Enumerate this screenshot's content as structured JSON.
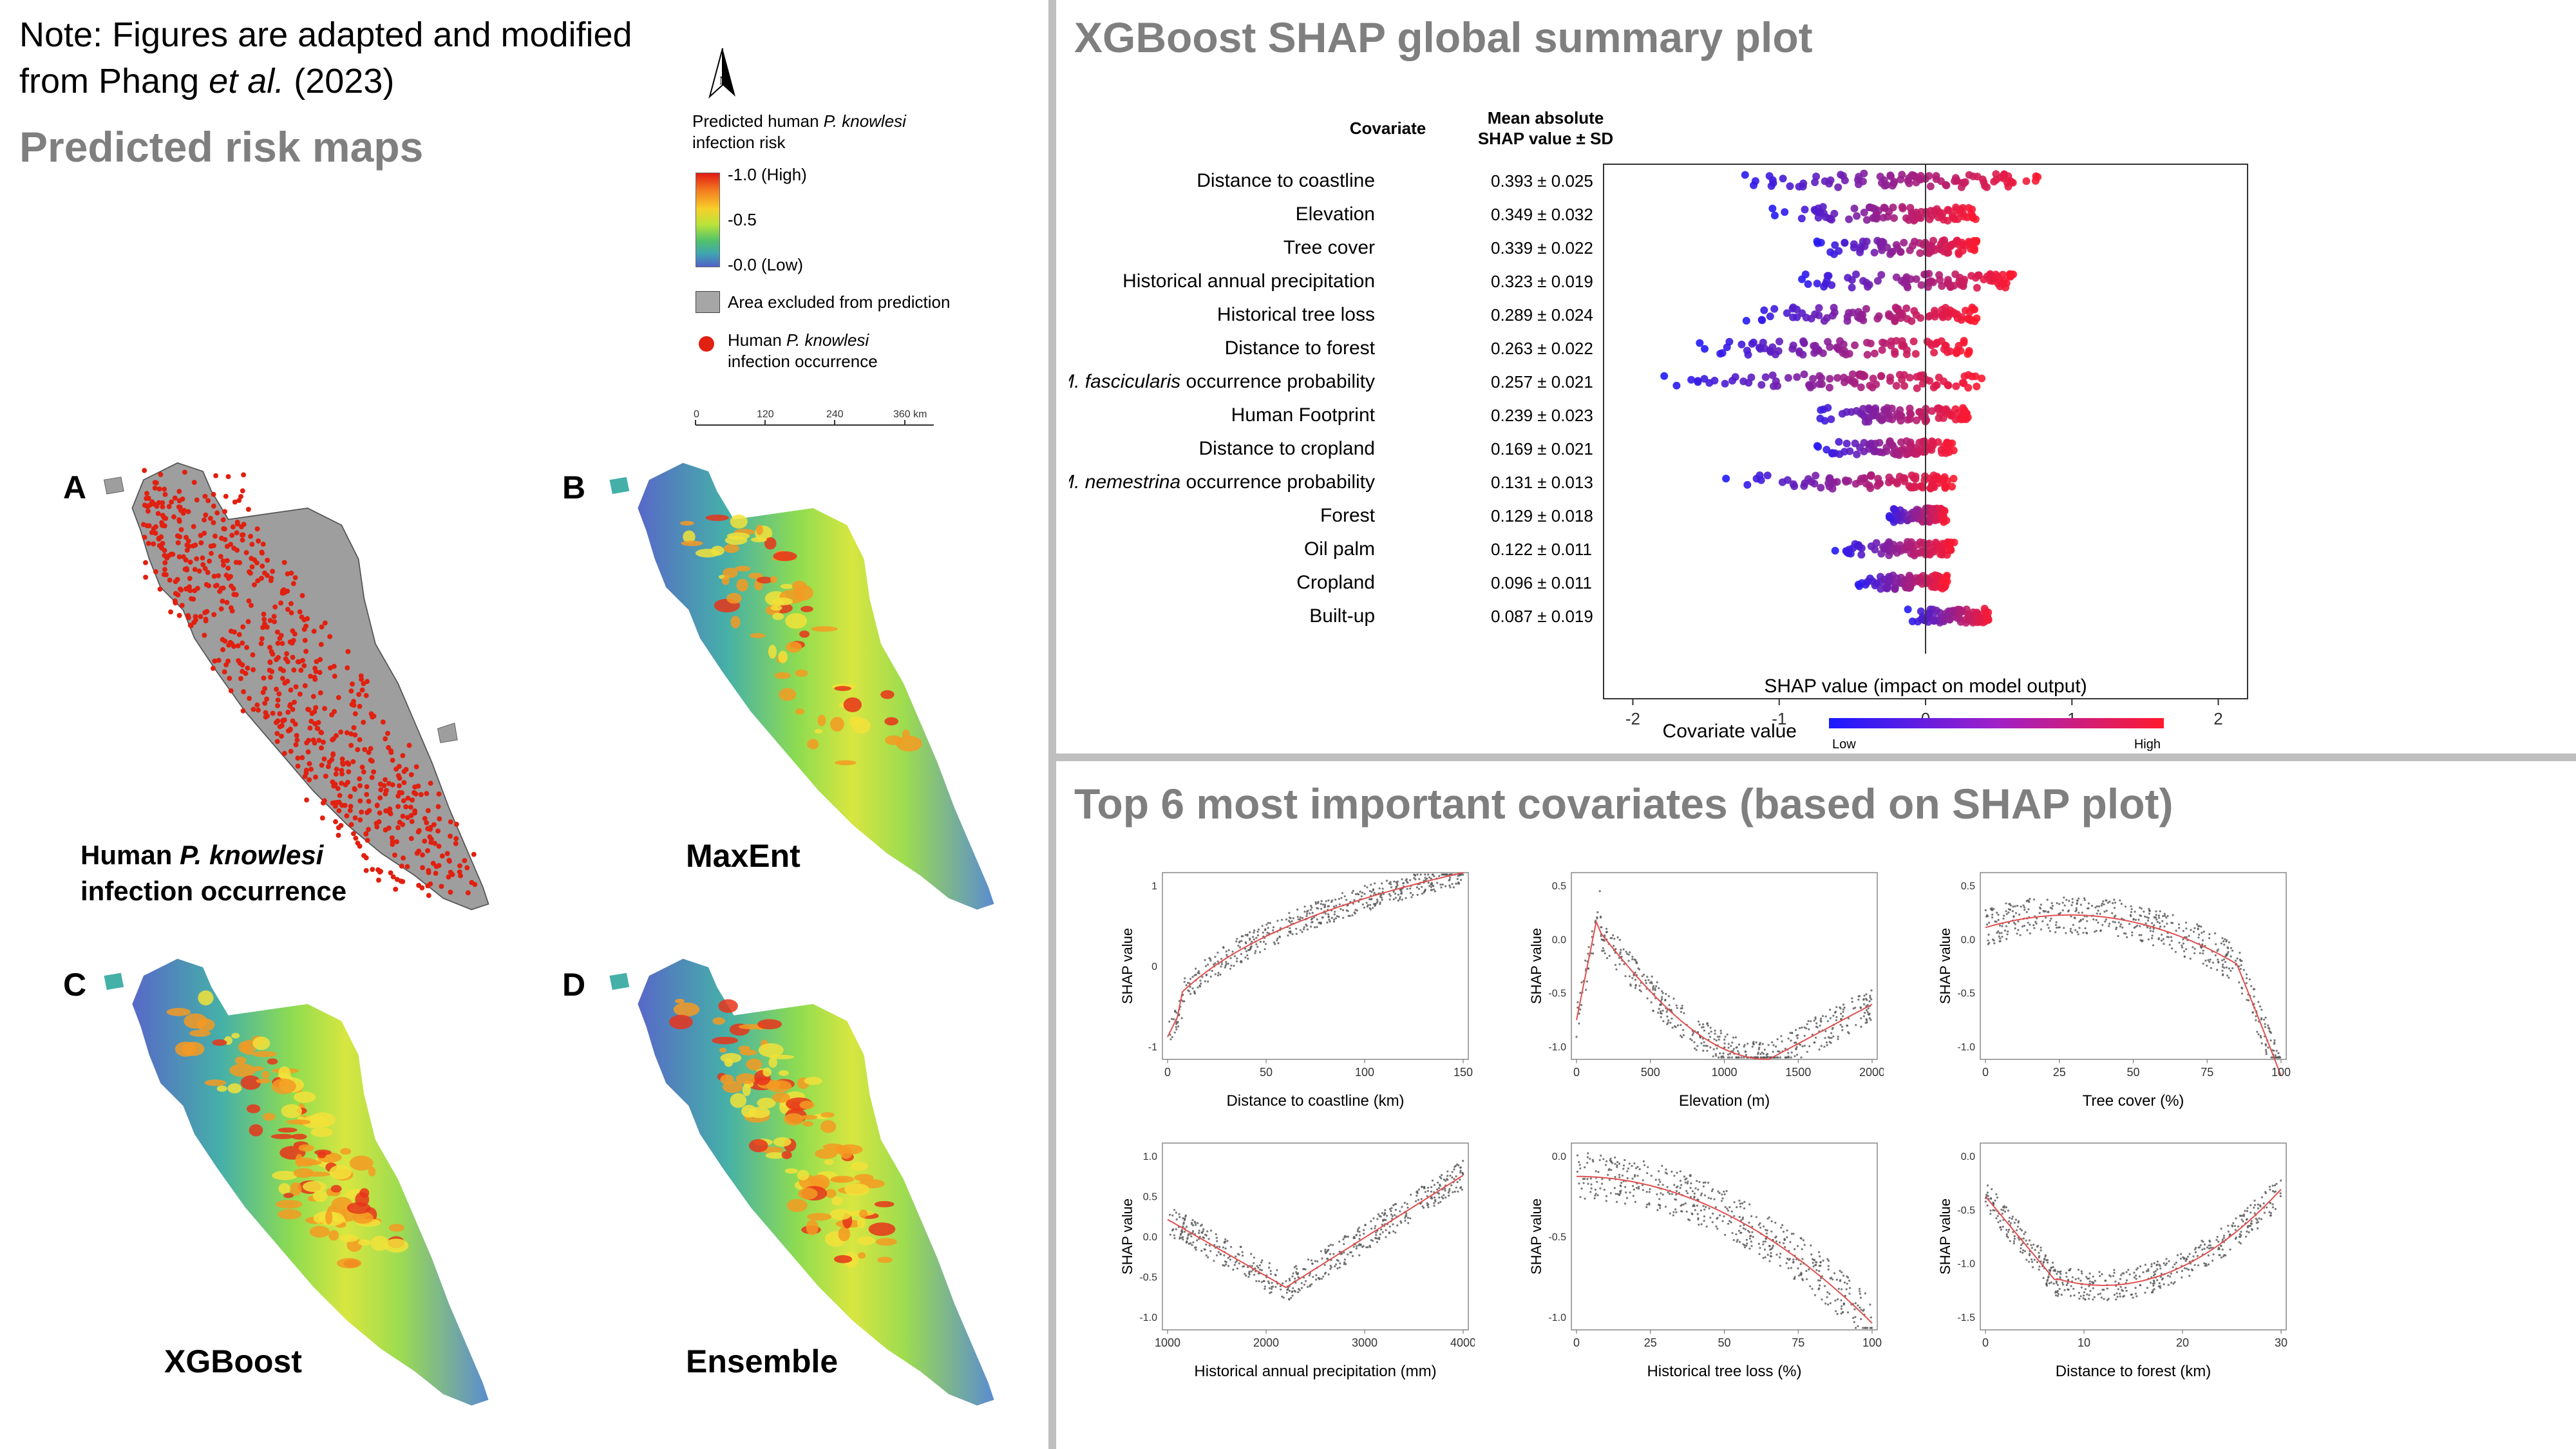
{
  "note": {
    "line1": "Note: Figures are adapted and modified",
    "line2_pre": "from Phang ",
    "line2_italic": "et al.",
    "line2_post": " (2023)"
  },
  "left_title": "Predicted risk maps",
  "legend": {
    "title_pre": "Predicted human ",
    "title_italic": "P. knowlesi",
    "title_line2": "infection risk",
    "high": "-1.0 (High)",
    "mid": "-0.5",
    "low": "-0.0 (Low)",
    "excluded": "Area excluded from prediction",
    "occ_pre": "Human ",
    "occ_italic": "P. knowlesi",
    "occ_line2": "infection occurrence",
    "scale_ticks": [
      "0",
      "120",
      "240",
      "360 km"
    ],
    "north": "N",
    "colors": {
      "high": "#e03020",
      "low": "#4a63c8",
      "excluded": "#9e9e9e",
      "occurrence": "#e02010"
    }
  },
  "maps": {
    "A": {
      "letter": "A",
      "label_pre": "Human ",
      "label_italic": "P. knowlesi",
      "label_line2": "infection occurrence"
    },
    "B": {
      "letter": "B",
      "label": "MaxEnt"
    },
    "C": {
      "letter": "C",
      "label": "XGBoost"
    },
    "D": {
      "letter": "D",
      "label": "Ensemble"
    }
  },
  "shap": {
    "title": "XGBoost SHAP global summary plot",
    "col_covariate": "Covariate",
    "col_mean_line1": "Mean absolute",
    "col_mean_line2": "SHAP value ± SD",
    "xlabel": "SHAP value (impact on model output)",
    "colorbar_label": "Covariate value",
    "colorbar_low": "Low",
    "colorbar_high": "High"
  },
  "chart_data": {
    "type": "scatter",
    "title": "XGBoost SHAP global summary plot",
    "xlabel": "SHAP value (impact on model output)",
    "xlim": [
      -2.2,
      2.2
    ],
    "xticks": [
      "-2",
      "-1",
      "0",
      "1",
      "2"
    ],
    "covariates": [
      {
        "name": "Distance to coastline",
        "italic": "",
        "value": "0.393 ± 0.025",
        "lo": -1.4,
        "hi": 0.8
      },
      {
        "name": "Elevation",
        "italic": "",
        "value": "0.349 ± 0.032",
        "lo": -1.1,
        "hi": 0.35
      },
      {
        "name": "Tree cover",
        "italic": "",
        "value": "0.339 ± 0.022",
        "lo": -0.8,
        "hi": 0.35
      },
      {
        "name": "Historical annual precipitation",
        "italic": "",
        "value": "0.323 ± 0.019",
        "lo": -0.95,
        "hi": 0.6
      },
      {
        "name": "Historical tree loss",
        "italic": "",
        "value": "0.289 ± 0.024",
        "lo": -1.3,
        "hi": 0.35
      },
      {
        "name": "Distance to forest",
        "italic": "",
        "value": "0.263 ± 0.022",
        "lo": -1.6,
        "hi": 0.3
      },
      {
        "name": " occurrence probability",
        "italic": "M. fascicularis",
        "value": "0.257 ± 0.021",
        "lo": -1.85,
        "hi": 0.4
      },
      {
        "name": "Human Footprint",
        "italic": "",
        "value": "0.239 ± 0.023",
        "lo": -0.9,
        "hi": 0.3
      },
      {
        "name": "Distance to cropland",
        "italic": "",
        "value": "0.169 ± 0.021",
        "lo": -0.8,
        "hi": 0.2
      },
      {
        "name": " occurrence probability",
        "italic": "M. nemestrina",
        "value": "0.131 ± 0.013",
        "lo": -1.4,
        "hi": 0.2
      },
      {
        "name": "Forest",
        "italic": "",
        "value": "0.129 ± 0.018",
        "lo": -0.3,
        "hi": 0.15
      },
      {
        "name": "Oil palm",
        "italic": "",
        "value": "0.122 ± 0.011",
        "lo": -0.65,
        "hi": 0.2
      },
      {
        "name": "Cropland",
        "italic": "",
        "value": "0.096 ± 0.011",
        "lo": -0.5,
        "hi": 0.15
      },
      {
        "name": "Built-up",
        "italic": "",
        "value": "0.087 ± 0.019",
        "lo": -0.15,
        "hi": 0.45
      }
    ]
  },
  "dependence": {
    "title": "Top 6 most important covariates (based on SHAP plot)",
    "ylabel": "SHAP value",
    "plots": [
      {
        "xlabel": "Distance to coastline (km)",
        "xticks": [
          "0",
          "50",
          "100",
          "150"
        ],
        "yticks": [
          "1",
          "0",
          "-1"
        ],
        "shape": "coast"
      },
      {
        "xlabel": "Elevation (m)",
        "xticks": [
          "0",
          "500",
          "1000",
          "1500",
          "2000"
        ],
        "yticks": [
          "0.5",
          "0.0",
          "-0.5",
          "-1.0"
        ],
        "shape": "elev"
      },
      {
        "xlabel": "Tree cover (%)",
        "xticks": [
          "0",
          "25",
          "50",
          "75",
          "100"
        ],
        "yticks": [
          "0.5",
          "0.0",
          "-0.5",
          "-1.0"
        ],
        "shape": "tree"
      },
      {
        "xlabel": "Historical annual precipitation (mm)",
        "xticks": [
          "1000",
          "2000",
          "3000",
          "4000"
        ],
        "yticks": [
          "1.0",
          "0.5",
          "0.0",
          "-0.5",
          "-1.0"
        ],
        "shape": "precip"
      },
      {
        "xlabel": "Historical tree loss (%)",
        "xticks": [
          "0",
          "25",
          "50",
          "75",
          "100"
        ],
        "yticks": [
          "0.0",
          "-0.5",
          "-1.0"
        ],
        "shape": "loss"
      },
      {
        "xlabel": "Distance to forest (km)",
        "xticks": [
          "0",
          "10",
          "20",
          "30"
        ],
        "yticks": [
          "0.0",
          "-0.5",
          "-1.0",
          "-1.5"
        ],
        "shape": "forest"
      }
    ]
  }
}
